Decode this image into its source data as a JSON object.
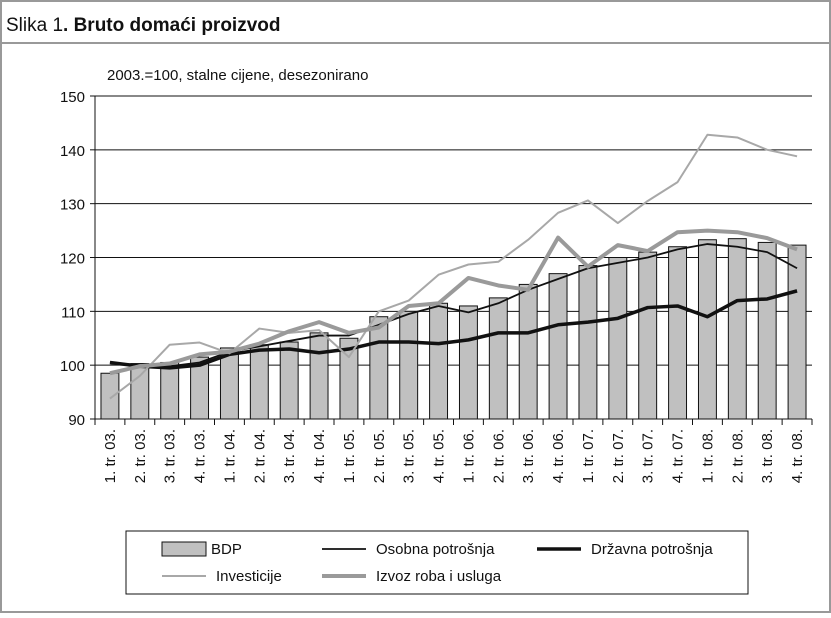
{
  "chart_data": {
    "type": "bar",
    "figure_label": "Slika 1",
    "title": ". Bruto domaći proizvod",
    "subtitle": "2003.=100, stalne cijene, desezonirano",
    "categories": [
      "1. tr. 03.",
      "2. tr. 03.",
      "3. tr. 03.",
      "4. tr. 03.",
      "1. tr. 04.",
      "2. tr. 04.",
      "3. tr. 04.",
      "4. tr. 04.",
      "1. tr. 05.",
      "2. tr. 05.",
      "3. tr. 05.",
      "4. tr. 05.",
      "1. tr. 06.",
      "2. tr. 06.",
      "3. tr. 06.",
      "4. tr. 06.",
      "1. tr. 07.",
      "2. tr. 07.",
      "3. tr. 07.",
      "4. tr. 07.",
      "1. tr. 08.",
      "2. tr. 08.",
      "3. tr. 08.",
      "4. tr. 08."
    ],
    "series": [
      {
        "name": "BDP",
        "type": "bar",
        "color": "#c0c0c0",
        "values": [
          98.5,
          100.3,
          100.5,
          101.5,
          103.2,
          103.8,
          104.3,
          106,
          105,
          109,
          110,
          111.5,
          111,
          112.5,
          115,
          117,
          118.5,
          120,
          121,
          122,
          123.3,
          123.5,
          122.8,
          122.3
        ]
      },
      {
        "name": "Osobna potrošnja",
        "type": "line",
        "color": "#111111",
        "width": 1.8,
        "values": [
          100.5,
          100,
          99.8,
          100.5,
          102.5,
          103.5,
          104.5,
          105.5,
          105.5,
          107.5,
          109.5,
          111,
          109.8,
          111.5,
          114,
          116,
          118,
          119,
          120,
          121.5,
          122.5,
          122,
          121,
          118
        ]
      },
      {
        "name": "Državna potrošnja",
        "type": "line",
        "color": "#111111",
        "width": 3.5,
        "values": [
          100.5,
          99.8,
          99.5,
          100,
          102,
          102.8,
          103,
          102.3,
          103,
          104.3,
          104.3,
          104,
          104.7,
          106,
          106,
          107.5,
          108,
          108.7,
          110.7,
          111,
          109,
          112,
          112.3,
          113.8
        ]
      },
      {
        "name": "Investicije",
        "type": "line",
        "color": "#a8a8a8",
        "width": 2,
        "values": [
          93.8,
          98,
          103.8,
          104.2,
          102.2,
          106.8,
          106,
          106.5,
          101.5,
          110,
          112,
          116.8,
          118.7,
          119.2,
          123.3,
          128.3,
          130.6,
          126.4,
          130.5,
          134,
          142.8,
          142.3,
          140,
          138.8
        ]
      },
      {
        "name": "Izvoz roba i usluga",
        "type": "line",
        "color": "#9a9a9a",
        "width": 4,
        "values": [
          98.5,
          99.8,
          100.3,
          102,
          102.5,
          104,
          106.3,
          108,
          106,
          107,
          111,
          111.5,
          116.2,
          114.8,
          114,
          123.7,
          118.3,
          122.3,
          121.2,
          124.7,
          125,
          124.7,
          123.6,
          121.5
        ]
      }
    ],
    "ylim": [
      90,
      150
    ],
    "yticks": [
      90,
      100,
      110,
      120,
      130,
      140,
      150
    ],
    "grid": true,
    "legend": "bottom"
  }
}
